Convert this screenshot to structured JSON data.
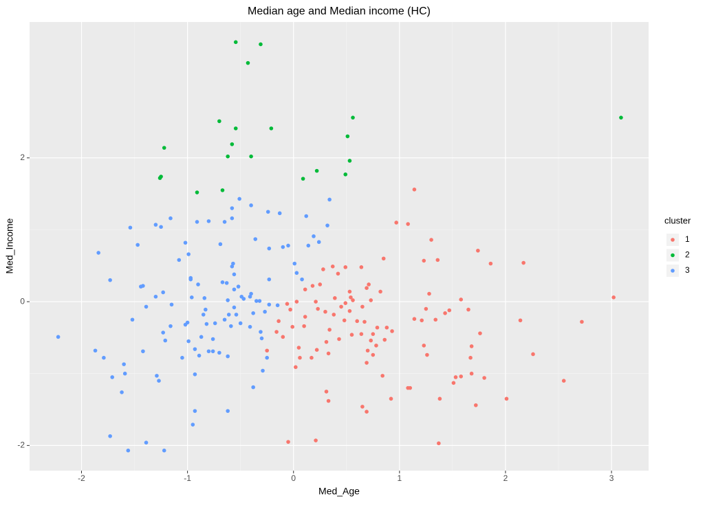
{
  "chart_data": {
    "type": "scatter",
    "title": "Median age and Median income (HC)",
    "x_label": "Med_Age",
    "y_label": "Med_Income",
    "legend_title": "cluster",
    "legend_position": "right",
    "grid": true,
    "xlim": [
      -2.49,
      3.35
    ],
    "ylim": [
      -2.35,
      3.89
    ],
    "xticks": [
      -2,
      -1,
      0,
      1,
      2,
      3
    ],
    "yticks": [
      -2,
      0,
      2
    ],
    "series": [
      {
        "name": "1",
        "color": "#F8766D",
        "x": [
          1.14,
          0.97,
          1.08,
          1.3,
          0.85,
          1.23,
          1.36,
          1.74,
          1.86,
          2.17,
          3.02,
          2.72,
          2.26,
          2.55,
          2.01,
          1.08,
          1.72,
          1.38,
          1.51,
          1.53,
          1.58,
          1.68,
          1.8,
          2.14,
          1.65,
          1.67,
          1.68,
          1.76,
          1.58,
          1.47,
          1.43,
          1.28,
          1.21,
          1.34,
          1.25,
          1.14,
          1.23,
          1.26,
          0.93,
          1.1,
          0.92,
          0.84,
          0.86,
          0.82,
          0.69,
          0.56,
          0.54,
          0.53,
          0.42,
          0.37,
          0.49,
          0.64,
          0.71,
          0.73,
          0.53,
          0.48,
          0.45,
          0.3,
          0.21,
          0.23,
          0.18,
          0.25,
          0.11,
          0.28,
          0.6,
          0.67,
          0.64,
          0.75,
          0.79,
          0.88,
          0.73,
          0.7,
          0.69,
          0.75,
          0.78,
          0.55,
          0.43,
          0.34,
          0.31,
          0.33,
          0.22,
          0.17,
          0.11,
          0.1,
          0.05,
          -0.03,
          0.03,
          -0.06,
          -0.1,
          -0.14,
          -0.16,
          -0.25,
          -0.01,
          0.39,
          0.38,
          0.49,
          0.65,
          0.31,
          0.33,
          0.06,
          0.02,
          -0.05,
          0.21,
          0.65,
          0.69,
          1.37
        ],
        "y": [
          1.56,
          1.1,
          1.08,
          0.86,
          0.6,
          0.57,
          0.58,
          0.71,
          0.53,
          0.54,
          0.06,
          -0.28,
          -0.73,
          -1.1,
          -1.35,
          -1.2,
          -1.44,
          -1.35,
          -1.13,
          -1.05,
          -1.04,
          -1.0,
          -1.06,
          -0.26,
          -0.11,
          -0.78,
          -0.62,
          -0.44,
          0.03,
          -0.12,
          -0.16,
          0.11,
          -0.26,
          -0.25,
          -0.1,
          -0.24,
          -0.61,
          -0.74,
          -0.41,
          -1.2,
          -1.35,
          -1.03,
          -0.53,
          0.14,
          0.19,
          0.02,
          0.06,
          0.14,
          0.39,
          0.49,
          0.48,
          0.48,
          0.24,
          0.02,
          -0.13,
          -0.26,
          -0.07,
          -0.14,
          0.0,
          -0.1,
          0.22,
          0.24,
          0.17,
          0.45,
          -0.27,
          -0.28,
          -0.45,
          -0.45,
          -0.36,
          -0.36,
          -0.54,
          -0.68,
          -0.85,
          -0.74,
          -0.61,
          -0.46,
          -0.52,
          -0.39,
          -0.56,
          -0.72,
          -0.67,
          -0.78,
          -0.21,
          -0.34,
          -0.64,
          -0.11,
          0.0,
          -0.03,
          -0.49,
          -0.27,
          -0.42,
          -0.68,
          -0.35,
          0.05,
          -0.18,
          -0.02,
          -0.07,
          -1.25,
          -1.38,
          -0.78,
          -0.91,
          -1.95,
          -1.93,
          -1.46,
          -1.53,
          -1.97
        ]
      },
      {
        "name": "2",
        "color": "#00BA38",
        "x": [
          -0.545,
          -0.31,
          -0.43,
          0.56,
          3.09,
          -0.7,
          -0.545,
          -0.21,
          -0.58,
          0.51,
          -1.22,
          -0.62,
          -0.4,
          0.53,
          0.22,
          -1.25,
          -1.26,
          0.49,
          0.09,
          -0.67,
          -0.91
        ],
        "y": [
          3.61,
          3.58,
          3.32,
          2.56,
          2.56,
          2.51,
          2.41,
          2.41,
          2.19,
          2.3,
          2.14,
          2.02,
          2.02,
          1.96,
          1.82,
          1.74,
          1.72,
          1.77,
          1.71,
          1.55,
          1.52
        ]
      },
      {
        "name": "3",
        "color": "#619CFF",
        "x": [
          -2.22,
          -1.84,
          -1.87,
          -1.79,
          -1.73,
          -1.71,
          -1.54,
          -1.59,
          -1.62,
          -1.56,
          -1.73,
          -1.52,
          -1.47,
          -1.44,
          -1.42,
          -1.42,
          -1.39,
          -1.39,
          -1.3,
          -1.25,
          -1.3,
          -1.27,
          -1.29,
          -1.23,
          -1.23,
          -1.21,
          -1.22,
          -1.16,
          -1.16,
          -1.15,
          -1.08,
          -1.05,
          -1.02,
          -1.02,
          -1.0,
          -0.99,
          -0.99,
          -0.97,
          -0.97,
          -0.96,
          -0.93,
          -0.93,
          -0.95,
          -0.91,
          -0.9,
          -0.93,
          -0.89,
          -0.85,
          -0.84,
          -0.83,
          -0.82,
          -0.8,
          -0.87,
          -0.8,
          -0.76,
          -0.76,
          -0.74,
          -0.7,
          -0.69,
          -0.67,
          -0.65,
          -0.65,
          -0.63,
          -0.62,
          -0.62,
          -0.61,
          -0.58,
          -0.59,
          -0.58,
          -0.58,
          -0.57,
          -0.56,
          -0.56,
          -0.56,
          -0.54,
          -0.52,
          -0.51,
          -0.5,
          -0.49,
          -0.47,
          -0.41,
          -0.41,
          -0.4,
          -0.4,
          -0.38,
          -0.38,
          -0.36,
          -0.35,
          -0.32,
          -0.31,
          -0.3,
          -0.29,
          -0.27,
          -0.25,
          -0.24,
          -0.23,
          -0.23,
          -0.23,
          -0.15,
          -0.13,
          -0.1,
          -0.05,
          0.01,
          0.03,
          0.08,
          0.12,
          0.14,
          0.19,
          0.24,
          0.32,
          0.34,
          -0.62,
          -1.6
        ],
        "y": [
          -0.49,
          0.68,
          -0.68,
          -0.78,
          0.3,
          -1.05,
          1.03,
          -1.0,
          -1.26,
          -2.07,
          -1.87,
          -0.25,
          0.79,
          0.21,
          0.22,
          -0.69,
          -0.07,
          -1.96,
          1.07,
          1.04,
          0.07,
          -1.1,
          -1.03,
          0.13,
          -0.43,
          -0.54,
          -2.07,
          1.16,
          -0.34,
          -0.04,
          0.58,
          -0.78,
          -0.32,
          0.82,
          -0.29,
          -0.55,
          0.66,
          0.33,
          0.31,
          0.06,
          -1.01,
          -1.52,
          -1.71,
          1.11,
          0.24,
          -0.66,
          -0.75,
          -0.18,
          0.05,
          -0.11,
          -0.31,
          1.12,
          -0.49,
          -0.69,
          -0.52,
          -0.69,
          -0.3,
          -0.71,
          0.8,
          0.27,
          1.11,
          -0.25,
          0.26,
          0.02,
          -0.76,
          -0.18,
          0.49,
          -0.34,
          1.3,
          1.16,
          0.53,
          0.38,
          0.17,
          -0.08,
          -0.18,
          0.21,
          1.43,
          -0.3,
          0.07,
          0.04,
          0.07,
          -0.35,
          1.34,
          0.11,
          -0.16,
          -1.19,
          0.87,
          0.01,
          0.01,
          -0.42,
          -0.51,
          -0.96,
          -0.14,
          -0.78,
          1.25,
          0.74,
          0.31,
          -0.04,
          -0.05,
          1.23,
          0.76,
          0.78,
          0.53,
          0.4,
          0.31,
          1.19,
          0.78,
          0.91,
          0.83,
          1.06,
          1.42,
          -1.52,
          -0.87
        ]
      }
    ]
  }
}
